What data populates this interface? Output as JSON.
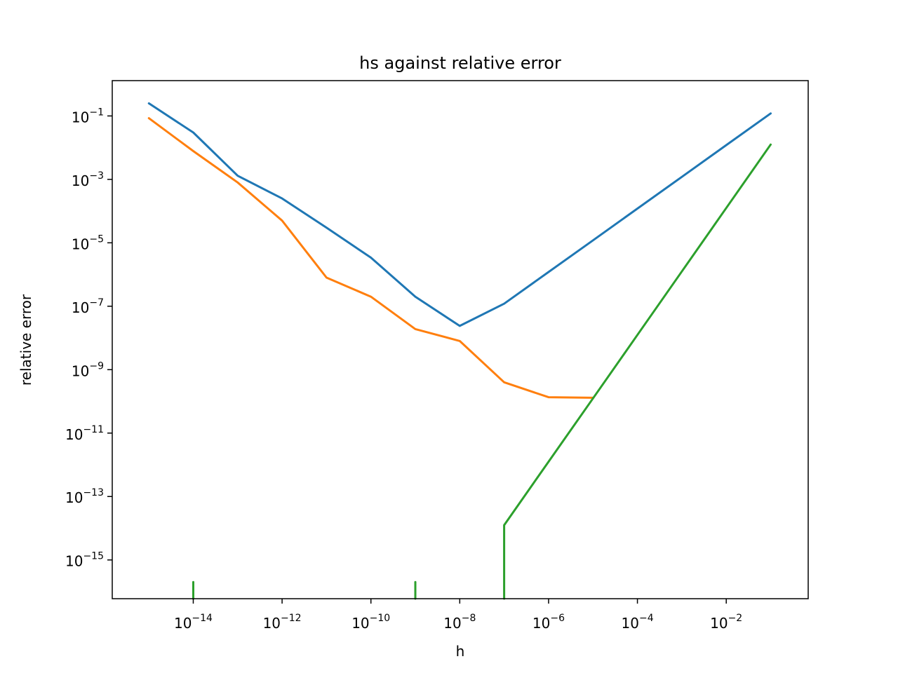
{
  "chart_data": {
    "type": "line",
    "title": "hs against relative error",
    "xlabel": "h",
    "ylabel": "relative error",
    "xscale": "log",
    "yscale": "log",
    "grid": false,
    "legend": "none",
    "x_ticks": [
      {
        "base": "10",
        "exp": "−14",
        "value": 1e-14
      },
      {
        "base": "10",
        "exp": "−12",
        "value": 1e-12
      },
      {
        "base": "10",
        "exp": "−10",
        "value": 1e-10
      },
      {
        "base": "10",
        "exp": "−8",
        "value": 1e-08
      },
      {
        "base": "10",
        "exp": "−6",
        "value": 1e-06
      },
      {
        "base": "10",
        "exp": "−4",
        "value": 0.0001
      },
      {
        "base": "10",
        "exp": "−2",
        "value": 0.01
      }
    ],
    "y_ticks": [
      {
        "base": "10",
        "exp": "−1",
        "value": 0.1
      },
      {
        "base": "10",
        "exp": "−3",
        "value": 0.001
      },
      {
        "base": "10",
        "exp": "−5",
        "value": 1e-05
      },
      {
        "base": "10",
        "exp": "−7",
        "value": 1e-07
      },
      {
        "base": "10",
        "exp": "−9",
        "value": 1e-09
      },
      {
        "base": "10",
        "exp": "−11",
        "value": 1e-11
      },
      {
        "base": "10",
        "exp": "−13",
        "value": 1e-13
      },
      {
        "base": "10",
        "exp": "−15",
        "value": 1e-15
      }
    ],
    "xlim": [
      1.5e-16,
      0.7
    ],
    "ylim": [
      6e-17,
      1.3
    ],
    "series": [
      {
        "color": "#1f77b4",
        "points": [
          [
            1e-15,
            0.25
          ],
          [
            1e-14,
            0.03
          ],
          [
            1e-13,
            0.0013
          ],
          [
            1e-12,
            0.00025
          ],
          [
            1e-11,
            3e-05
          ],
          [
            1e-10,
            3.4e-06
          ],
          [
            1e-09,
            2e-07
          ],
          [
            1e-08,
            2.4e-08
          ],
          [
            1e-07,
            1.2e-07
          ],
          [
            1e-06,
            1.2e-06
          ],
          [
            1e-05,
            1.2e-05
          ],
          [
            0.0001,
            0.00012
          ],
          [
            0.001,
            0.0012
          ],
          [
            0.01,
            0.012
          ],
          [
            0.1,
            0.12
          ]
        ]
      },
      {
        "color": "#ff7f0e",
        "points": [
          [
            1e-15,
            0.085
          ],
          [
            1e-14,
            0.0078
          ],
          [
            1e-13,
            0.0008
          ],
          [
            1e-12,
            5e-05
          ],
          [
            1e-11,
            8e-07
          ],
          [
            1e-10,
            2e-07
          ],
          [
            1e-09,
            1.9e-08
          ],
          [
            1e-08,
            8e-09
          ],
          [
            1e-07,
            4e-10
          ],
          [
            1e-06,
            1.35e-10
          ],
          [
            1e-05,
            1.3e-10
          ]
        ]
      },
      {
        "color": "#2ca02c",
        "segments": [
          [
            [
              1e-14,
              6e-17
            ],
            [
              1e-14,
              2e-16
            ]
          ],
          [
            [
              1e-09,
              6e-17
            ],
            [
              1e-09,
              2e-16
            ]
          ],
          [
            [
              1e-07,
              6e-17
            ],
            [
              1e-07,
              1.25e-14
            ],
            [
              1e-06,
              1.25e-12
            ],
            [
              1e-05,
              1.25e-10
            ],
            [
              0.0001,
              1.25e-08
            ],
            [
              0.001,
              1.25e-06
            ],
            [
              0.01,
              0.000125
            ],
            [
              0.1,
              0.0125
            ]
          ]
        ]
      }
    ]
  }
}
